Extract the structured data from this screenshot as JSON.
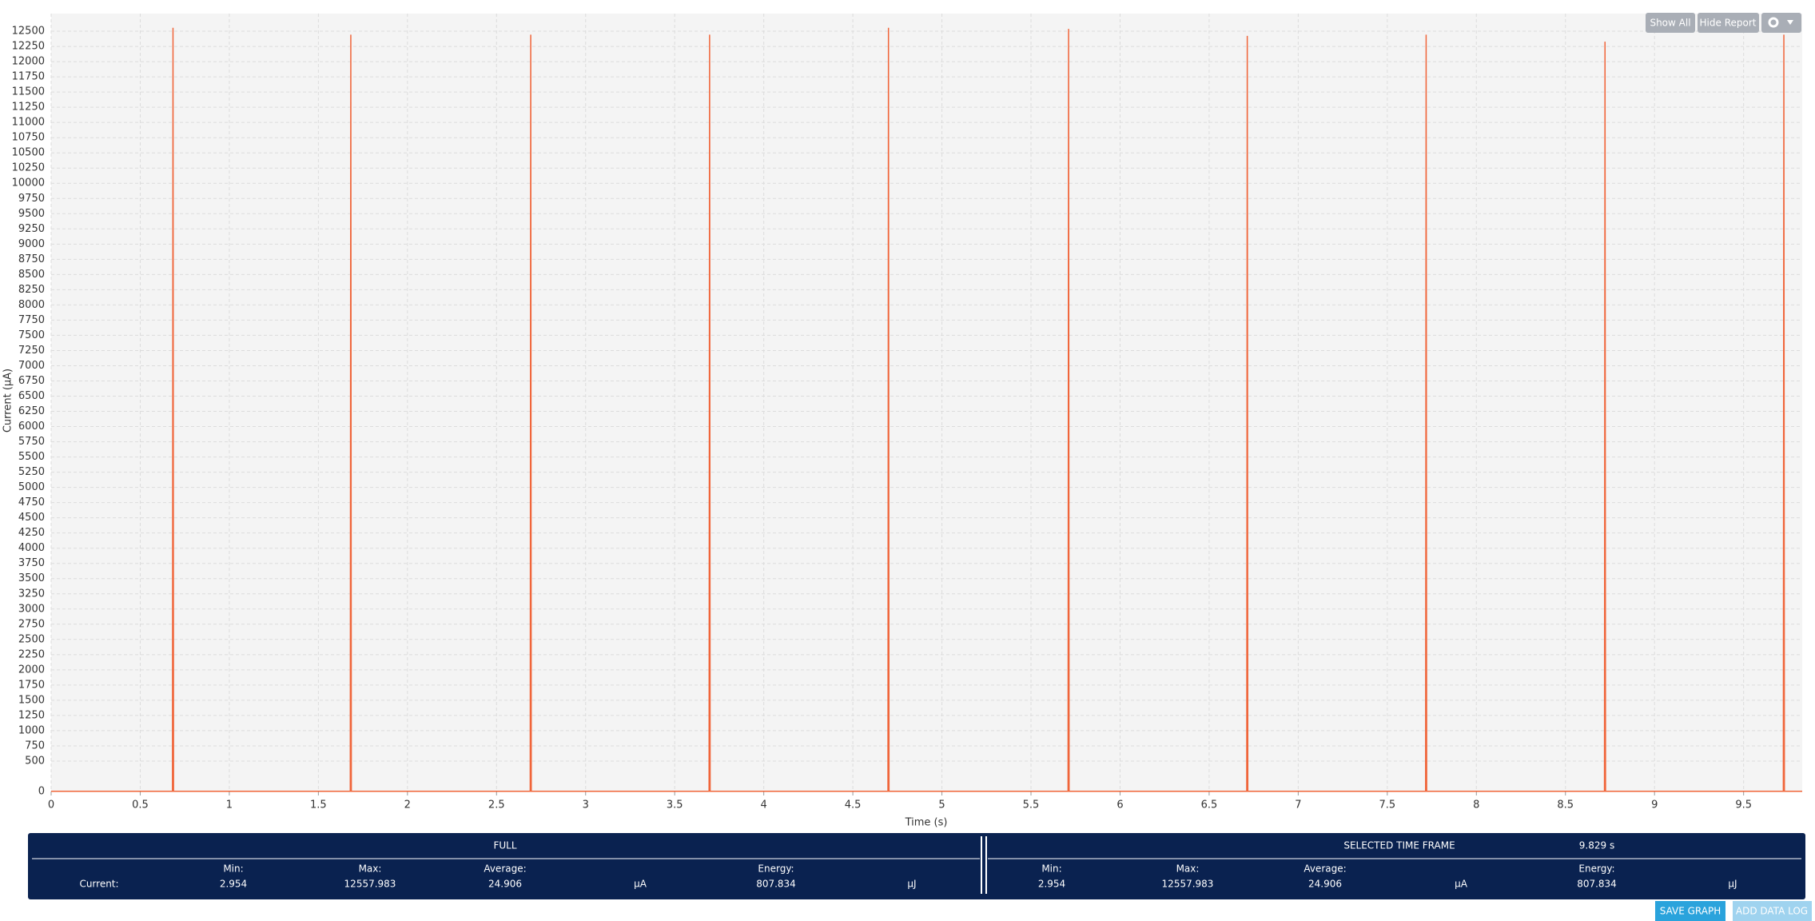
{
  "chart_data": {
    "type": "line",
    "x_label": "Time (s)",
    "y_label": "Current (µA)",
    "x": [
      0,
      0.681,
      0.684,
      0.687,
      1.679,
      1.682,
      1.685,
      2.689,
      2.692,
      2.695,
      3.693,
      3.696,
      3.699,
      4.697,
      4.7,
      4.703,
      5.708,
      5.711,
      5.714,
      6.711,
      6.714,
      6.717,
      7.715,
      7.718,
      7.721,
      8.719,
      8.722,
      8.725,
      9.723,
      9.726,
      9.729,
      9.829
    ],
    "series": [
      {
        "name": "Current",
        "color": "#f0653a",
        "values": [
          3,
          3,
          12557,
          3,
          3,
          12443,
          3,
          3,
          12443,
          3,
          3,
          12443,
          3,
          3,
          12557,
          3,
          3,
          12538,
          3,
          3,
          12424,
          3,
          3,
          12443,
          3,
          3,
          12328,
          3,
          3,
          12443,
          3,
          3
        ]
      }
    ],
    "xlim": [
      0,
      9.829
    ],
    "ylim": [
      0,
      12790
    ],
    "xticks": [
      0,
      0.5,
      1,
      1.5,
      2,
      2.5,
      3,
      3.5,
      4,
      4.5,
      5,
      5.5,
      6,
      6.5,
      7,
      7.5,
      8,
      8.5,
      9,
      9.5
    ],
    "yticks": [
      0,
      500,
      750,
      1000,
      1250,
      1500,
      1750,
      2000,
      2250,
      2500,
      2750,
      3000,
      3250,
      3500,
      3750,
      4000,
      4250,
      4500,
      4750,
      5000,
      5250,
      5500,
      5750,
      6000,
      6250,
      6500,
      6750,
      7000,
      7250,
      7500,
      7750,
      8000,
      8250,
      8500,
      8750,
      9000,
      9250,
      9500,
      9750,
      10000,
      10250,
      10500,
      10750,
      11000,
      11250,
      11500,
      11750,
      12000,
      12250,
      12500
    ],
    "grid": true
  },
  "toolbar": {
    "show_all": "Show All",
    "hide_report": "Hide Report"
  },
  "report": {
    "full": {
      "title": "FULL",
      "row_label": "Current:",
      "min_label": "Min:",
      "min": 2.954,
      "max_label": "Max:",
      "max": 12557.983,
      "avg_label": "Average:",
      "avg": 24.906,
      "unit": "µA",
      "energy_label": "Energy:",
      "energy": 807.834,
      "energy_unit": "µJ"
    },
    "selected": {
      "title": "SELECTED TIME FRAME",
      "duration": "9.829 s",
      "min_label": "Min:",
      "min": 2.954,
      "max_label": "Max:",
      "max": 12557.983,
      "avg_label": "Average:",
      "avg": 24.906,
      "unit": "µA",
      "energy_label": "Energy:",
      "energy": 807.834,
      "energy_unit": "µJ"
    }
  },
  "actions": {
    "save_graph": "SAVE GRAPH",
    "add_data_log": "ADD DATA LOG"
  }
}
